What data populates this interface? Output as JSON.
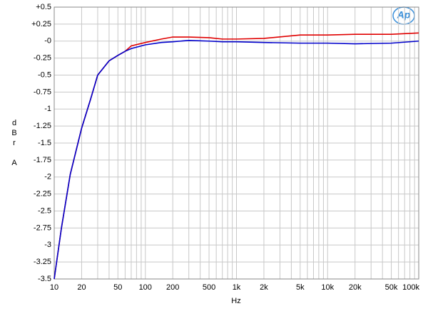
{
  "chart_data": {
    "type": "line",
    "xlabel": "Hz",
    "ylabel_letters": [
      "d",
      "B",
      "r",
      "A"
    ],
    "logo": "Ap",
    "xscale": "log",
    "grid": true,
    "x": [
      10,
      12,
      15,
      20,
      25,
      30,
      40,
      50,
      60,
      70,
      100,
      150,
      200,
      300,
      500,
      700,
      1000,
      2000,
      5000,
      10000,
      20000,
      50000,
      100000
    ],
    "series": [
      {
        "name": "Red",
        "color": "#e00000",
        "values": [
          -3.5,
          -2.75,
          -1.96,
          -1.28,
          -0.86,
          -0.5,
          -0.29,
          -0.21,
          -0.15,
          -0.07,
          -0.02,
          0.03,
          0.06,
          0.06,
          0.05,
          0.03,
          0.03,
          0.04,
          0.09,
          0.09,
          0.1,
          0.1,
          0.12
        ]
      },
      {
        "name": "Blue",
        "color": "#0000cc",
        "values": [
          -3.5,
          -2.75,
          -1.96,
          -1.28,
          -0.86,
          -0.5,
          -0.29,
          -0.21,
          -0.15,
          -0.11,
          -0.055,
          -0.02,
          -0.01,
          0.01,
          0.0,
          -0.01,
          -0.01,
          -0.02,
          -0.03,
          -0.03,
          -0.04,
          -0.03,
          0.0
        ]
      }
    ],
    "xlim": [
      10,
      100000
    ],
    "ylim": [
      -3.5,
      0.5
    ],
    "xticks": [
      10,
      20,
      50,
      100,
      200,
      500,
      {
        "value": 1000,
        "label": "1k"
      },
      {
        "value": 2000,
        "label": "2k"
      },
      {
        "value": 5000,
        "label": "5k"
      },
      {
        "value": 10000,
        "label": "10k"
      },
      {
        "value": 20000,
        "label": "20k"
      },
      {
        "value": 50000,
        "label": "50k"
      },
      {
        "value": 100000,
        "label": "100k"
      }
    ],
    "xgrid": [
      30,
      40,
      60,
      70,
      80,
      90,
      300,
      400,
      600,
      700,
      800,
      900,
      3000,
      4000,
      6000,
      7000,
      8000,
      9000,
      30000,
      40000,
      60000,
      70000,
      80000,
      90000
    ],
    "yticks": [
      {
        "value": 0.5,
        "label": "+0.5"
      },
      {
        "value": 0.25,
        "label": "+0.25"
      },
      {
        "value": 0,
        "label": "-0"
      },
      -0.25,
      -0.5,
      -0.75,
      -1,
      -1.25,
      -1.5,
      -1.75,
      -2,
      -2.25,
      -2.5,
      -2.75,
      -3,
      -3.25,
      -3.5
    ]
  }
}
